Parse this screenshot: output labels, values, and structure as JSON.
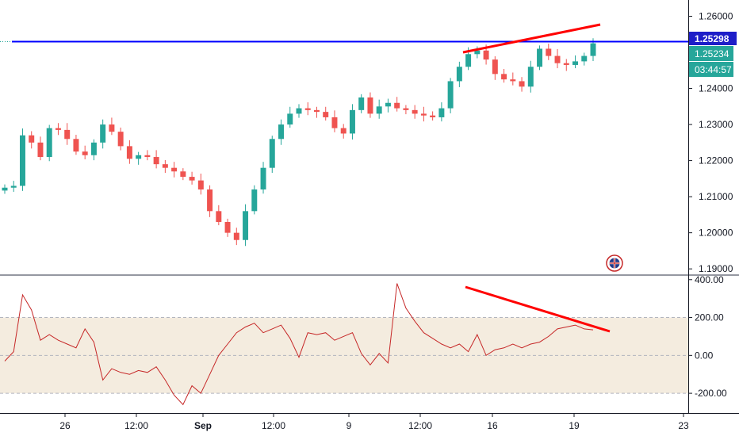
{
  "chart_data": [
    {
      "type": "candlestick",
      "price_axis": {
        "ylim": [
          1.1885,
          1.2645
        ],
        "ticks": [
          "1.26000",
          "1.25000",
          "1.24000",
          "1.23000",
          "1.22000",
          "1.21000",
          "1.20000",
          "1.19000"
        ]
      },
      "time_axis": {
        "labels": [
          "26",
          "12:00",
          "Sep",
          "12:00",
          "9",
          "12:00",
          "16",
          "19",
          "23"
        ]
      },
      "horizontal_line": {
        "value": "1.25298",
        "color": "#0000ff"
      },
      "last_price": "1.25234",
      "countdown": "03:44:57",
      "trend_line_color": "#ff0000",
      "up_color": "#26a69a",
      "down_color": "#ef5350",
      "closes": [
        1.2125,
        1.213,
        1.227,
        1.225,
        1.221,
        1.229,
        1.2285,
        1.226,
        1.2225,
        1.2215,
        1.225,
        1.23,
        1.228,
        1.224,
        1.2205,
        1.2215,
        1.221,
        1.219,
        1.218,
        1.217,
        1.2155,
        1.2145,
        1.212,
        1.206,
        1.203,
        1.2,
        1.198,
        1.206,
        1.212,
        1.218,
        1.226,
        1.23,
        1.233,
        1.2345,
        1.234,
        1.2335,
        1.232,
        1.229,
        1.2275,
        1.234,
        1.2375,
        1.233,
        1.235,
        1.236,
        1.2345,
        1.234,
        1.233,
        1.2325,
        1.232,
        1.2345,
        1.242,
        1.246,
        1.2495,
        1.2505,
        1.248,
        1.244,
        1.2425,
        1.242,
        1.2405,
        1.246,
        1.251,
        1.249,
        1.247,
        1.2465,
        1.2475,
        1.249,
        1.2525
      ]
    },
    {
      "type": "line",
      "ylim": [
        -300,
        420
      ],
      "ticks": [
        "400.00",
        "200.00",
        "0.00",
        "-200.00"
      ],
      "band": [
        -200,
        200
      ],
      "band_color": "#f4ecdf",
      "line_color": "#c62828",
      "values": [
        -30,
        20,
        320,
        240,
        80,
        110,
        80,
        60,
        40,
        140,
        70,
        -130,
        -70,
        -90,
        -100,
        -80,
        -90,
        -60,
        -130,
        -210,
        -260,
        -160,
        -200,
        -100,
        0,
        60,
        120,
        150,
        170,
        120,
        140,
        160,
        90,
        -10,
        120,
        110,
        120,
        80,
        100,
        120,
        10,
        -50,
        10,
        -40,
        380,
        250,
        180,
        120,
        90,
        60,
        40,
        60,
        20,
        110,
        0,
        30,
        40,
        60,
        40,
        60,
        70,
        100,
        140,
        150,
        160,
        140,
        135
      ]
    }
  ]
}
